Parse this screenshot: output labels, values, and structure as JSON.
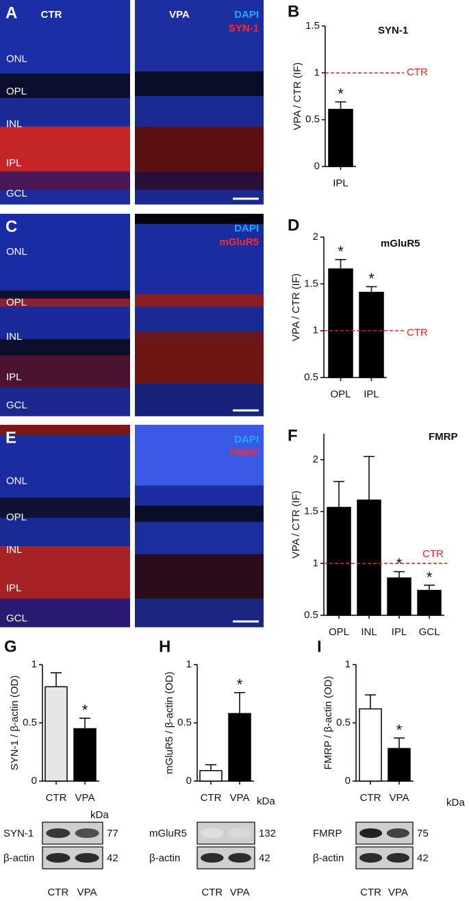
{
  "images": [
    {
      "panel": "A",
      "conditions": [
        "CTR",
        "VPA"
      ],
      "stains": [
        "DAPI",
        "SYN-1"
      ],
      "layers": [
        "ONL",
        "OPL",
        "INL",
        "IPL",
        "GCL"
      ]
    },
    {
      "panel": "C",
      "stains": [
        "DAPI",
        "mGluR5"
      ],
      "layers": [
        "ONL",
        "OPL",
        "INL",
        "IPL",
        "GCL"
      ]
    },
    {
      "panel": "E",
      "stains": [
        "DAPI",
        "FMRP"
      ],
      "layers": [
        "ONL",
        "OPL",
        "INL",
        "IPL",
        "GCL"
      ]
    }
  ],
  "chart_data": [
    {
      "type": "bar",
      "panel": "B",
      "title": "SYN-1",
      "y_label": "VPA / CTR (IF)",
      "categories": [
        "IPL"
      ],
      "values": [
        0.61
      ],
      "errors": [
        0.08
      ],
      "markers": [
        "*"
      ],
      "colors": [
        "#000000"
      ],
      "ylim": [
        0,
        1.5
      ],
      "yticks": [
        0,
        0.5,
        1,
        1.5
      ],
      "reference": {
        "value": 1,
        "label": "CTR",
        "color": "#e8221e"
      }
    },
    {
      "type": "bar",
      "panel": "D",
      "title": "mGluR5",
      "y_label": "VPA / CTR (IF)",
      "categories": [
        "OPL",
        "IPL"
      ],
      "values": [
        1.66,
        1.41
      ],
      "errors": [
        0.1,
        0.06
      ],
      "markers": [
        "*",
        "*"
      ],
      "colors": [
        "#000000",
        "#000000"
      ],
      "ylim": [
        0.5,
        2
      ],
      "yticks": [
        0.5,
        1,
        1.5,
        2
      ],
      "reference": {
        "value": 1,
        "label": "CTR",
        "color": "#e8221e"
      }
    },
    {
      "type": "bar",
      "panel": "F",
      "title": "FMRP",
      "y_label": "VPA / CTR (IF)",
      "categories": [
        "OPL",
        "INL",
        "IPL",
        "GCL"
      ],
      "values": [
        1.54,
        1.61,
        0.86,
        0.74
      ],
      "errors": [
        0.25,
        0.42,
        0.06,
        0.05
      ],
      "markers": [
        null,
        null,
        "*",
        "*"
      ],
      "colors": [
        "#000000",
        "#000000",
        "#000000",
        "#000000"
      ],
      "ylim": [
        0.5,
        2.25
      ],
      "yticks": [
        0.5,
        1,
        1.5,
        2
      ],
      "reference": {
        "value": 1,
        "label": "CTR",
        "color": "#e8221e"
      }
    },
    {
      "type": "bar",
      "panel": "G",
      "y_label": "SYN-1 / β-actin (OD)",
      "categories": [
        "CTR",
        "VPA"
      ],
      "values": [
        0.81,
        0.45
      ],
      "errors": [
        0.12,
        0.09
      ],
      "markers": [
        null,
        "*"
      ],
      "colors": [
        "#e6e6e6",
        "#000000"
      ],
      "ylim": [
        0,
        1
      ],
      "yticks": [
        0,
        0.5,
        1
      ]
    },
    {
      "type": "bar",
      "panel": "H",
      "y_label": "mGluR5 / β-actin (OD)",
      "categories": [
        "CTR",
        "VPA"
      ],
      "values": [
        0.09,
        0.58
      ],
      "errors": [
        0.05,
        0.18
      ],
      "markers": [
        null,
        "*"
      ],
      "colors": [
        "#ffffff",
        "#000000"
      ],
      "ylim": [
        0,
        1
      ],
      "yticks": [
        0,
        0.5,
        1
      ]
    },
    {
      "type": "bar",
      "panel": "I",
      "y_label": "FMRP / β-actin (OD)",
      "categories": [
        "CTR",
        "VPA"
      ],
      "values": [
        0.62,
        0.28
      ],
      "errors": [
        0.12,
        0.09
      ],
      "markers": [
        null,
        "*"
      ],
      "colors": [
        "#ffffff",
        "#000000"
      ],
      "ylim": [
        0,
        1
      ],
      "yticks": [
        0,
        0.5,
        1
      ]
    }
  ],
  "blots": [
    {
      "rows": [
        "SYN-1",
        "β-actin"
      ],
      "unit": "kDa",
      "sizes": [
        "77",
        "42"
      ],
      "lanes": [
        "CTR",
        "VPA"
      ]
    },
    {
      "rows": [
        "mGluR5",
        "β-actin"
      ],
      "unit": "kDa",
      "sizes": [
        "132",
        "42"
      ],
      "lanes": [
        "CTR",
        "VPA"
      ]
    },
    {
      "rows": [
        "FMRP",
        "β-actin"
      ],
      "unit": "kDa",
      "sizes": [
        "75",
        "42"
      ],
      "lanes": [
        "CTR",
        "VPA"
      ]
    }
  ]
}
